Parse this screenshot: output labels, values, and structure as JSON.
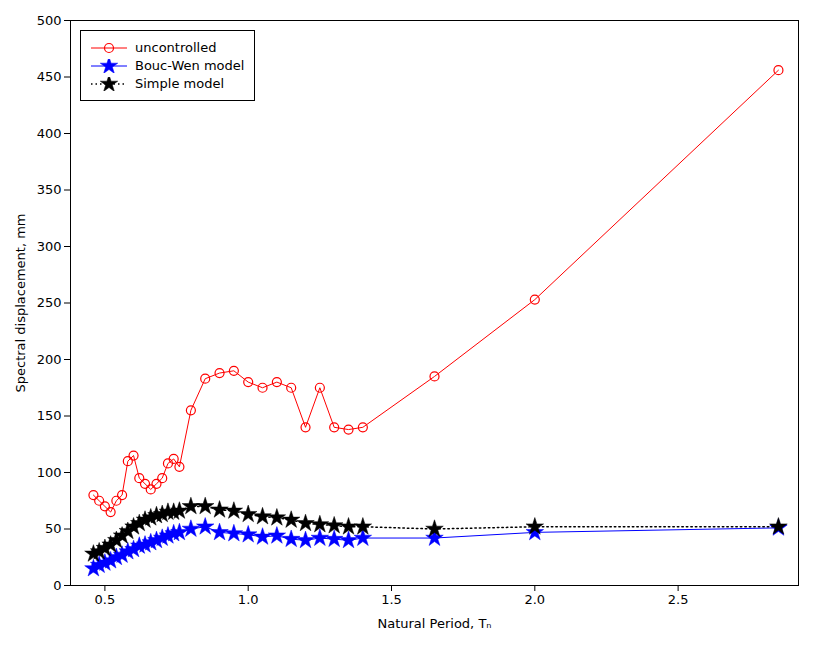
{
  "chart_data": {
    "type": "line",
    "xlabel": "Natural Period, Tₙ",
    "ylabel": "Spectral displacement, mm",
    "xlim": [
      0.38,
      2.92
    ],
    "ylim": [
      0,
      500
    ],
    "xticks": [
      0.5,
      {
        "value": 1.0,
        "label": "1.0"
      },
      1.5,
      {
        "value": 2.0,
        "label": "2.0"
      },
      2.5
    ],
    "yticks": [
      0,
      50,
      100,
      150,
      200,
      250,
      300,
      350,
      400,
      450,
      500
    ],
    "grid": false,
    "legend": "upper left",
    "series": [
      {
        "name": "uncontrolled",
        "color": "#FF0000",
        "marker": "circle",
        "line_style": "solid",
        "x": [
          0.46,
          0.48,
          0.5,
          0.52,
          0.54,
          0.56,
          0.58,
          0.6,
          0.62,
          0.64,
          0.66,
          0.68,
          0.7,
          0.72,
          0.74,
          0.76,
          0.8,
          0.85,
          0.9,
          0.95,
          1.0,
          1.05,
          1.1,
          1.15,
          1.2,
          1.25,
          1.3,
          1.35,
          1.4,
          1.65,
          2.0,
          2.85
        ],
        "values": [
          80,
          75,
          70,
          65,
          75,
          80,
          110,
          115,
          95,
          90,
          85,
          90,
          95,
          108,
          112,
          105,
          155,
          183,
          188,
          190,
          180,
          175,
          180,
          175,
          140,
          175,
          140,
          138,
          140,
          185,
          253,
          456
        ]
      },
      {
        "name": "Bouc-Wen model",
        "color": "#0000FF",
        "marker": "star",
        "line_style": "solid",
        "x": [
          0.46,
          0.48,
          0.5,
          0.52,
          0.54,
          0.56,
          0.58,
          0.6,
          0.62,
          0.64,
          0.66,
          0.68,
          0.7,
          0.72,
          0.74,
          0.76,
          0.8,
          0.85,
          0.9,
          0.95,
          1.0,
          1.05,
          1.1,
          1.15,
          1.2,
          1.25,
          1.3,
          1.35,
          1.4,
          1.65,
          2.0,
          2.85
        ],
        "values": [
          15,
          18,
          20,
          22,
          25,
          27,
          30,
          32,
          35,
          36,
          38,
          40,
          42,
          44,
          46,
          47,
          50,
          52,
          47,
          46,
          45,
          43,
          44,
          41,
          40,
          42,
          41,
          40,
          42,
          42,
          47,
          51
        ]
      },
      {
        "name": "Simple model",
        "color": "#000000",
        "marker": "star",
        "line_style": "dotted",
        "x": [
          0.46,
          0.48,
          0.5,
          0.52,
          0.54,
          0.56,
          0.58,
          0.6,
          0.62,
          0.64,
          0.66,
          0.68,
          0.7,
          0.72,
          0.74,
          0.76,
          0.8,
          0.85,
          0.9,
          0.95,
          1.0,
          1.05,
          1.1,
          1.15,
          1.2,
          1.25,
          1.3,
          1.35,
          1.4,
          1.65,
          2.0,
          2.85
        ],
        "values": [
          28,
          30,
          33,
          36,
          40,
          44,
          48,
          52,
          55,
          58,
          60,
          62,
          63,
          65,
          65,
          66,
          70,
          70,
          67,
          66,
          63,
          61,
          60,
          58,
          55,
          54,
          53,
          52,
          52,
          50,
          52,
          52
        ]
      }
    ]
  }
}
